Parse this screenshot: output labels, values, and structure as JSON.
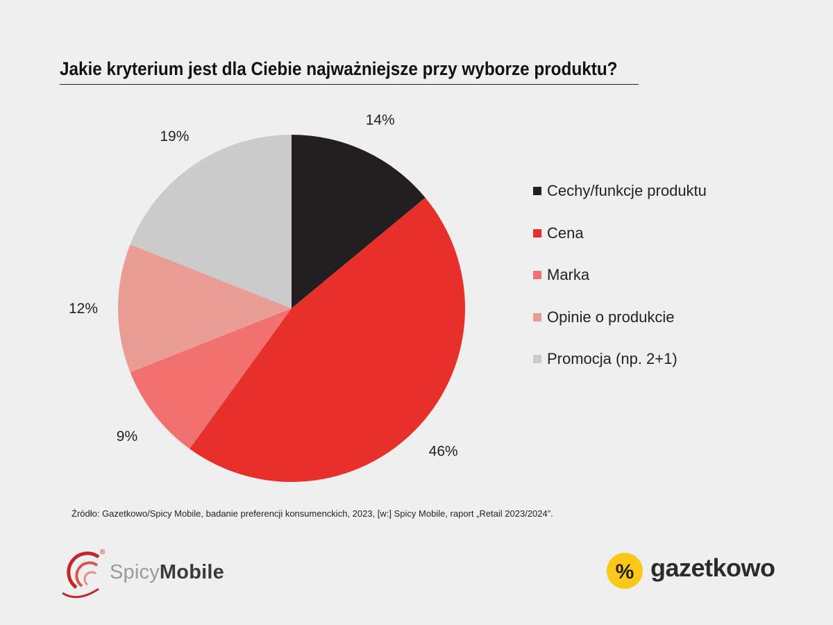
{
  "chart_data": {
    "type": "pie",
    "title": "Jakie kryterium jest dla Ciebie najważniejsze przy wyborze produktu?",
    "categories": [
      "Cechy/funkcje produktu",
      "Cena",
      "Marka",
      "Opinie o produkcie",
      "Promocja (np. 2+1)"
    ],
    "values": [
      14,
      46,
      9,
      12,
      19
    ],
    "labels": [
      "14%",
      "46%",
      "9%",
      "12%",
      "19%"
    ],
    "colors": [
      "#231f20",
      "#e8302a",
      "#f07170",
      "#e99d94",
      "#cbcbcb"
    ],
    "unit": "%",
    "legend_position": "right"
  },
  "source": "Źródło: Gazetkowo/Spicy Mobile, badanie preferencji konsumenckich, 2023, [w:] Spicy Mobile, raport „Retail 2023/2024”.",
  "logos": {
    "spicy_light": "Spicy",
    "spicy_bold": "Mobile",
    "spicy_registered": "®",
    "gazetkowo": "gazetkowo",
    "gazetkowo_symbol": "%",
    "gazetkowo_color": "#fbc81a"
  }
}
